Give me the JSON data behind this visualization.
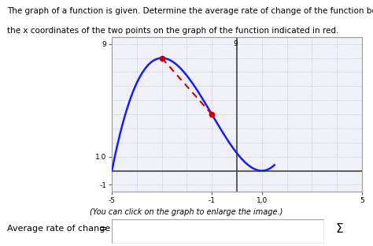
{
  "title_line1": "The graph of a function is given. Determine the average rate of change of the function between",
  "title_line2": "the x coordinates of the two points on the graph of the function indicated in red.",
  "caption": "(You can click on the graph to enlarge the image.)",
  "xlim": [
    -5,
    5
  ],
  "ylim": [
    -1.5,
    9.5
  ],
  "xtick_positions": [
    -5,
    -1,
    1,
    5
  ],
  "xtick_labels": [
    "-5",
    "-1",
    "1,0",
    "5"
  ],
  "ytick_positions": [
    -1,
    1,
    9
  ],
  "ytick_labels": [
    "-1",
    "1.0",
    "9"
  ],
  "grid_color": "#aab0cc",
  "curve_color": "#1a1aff",
  "secant_color": "#cc0000",
  "point_color": "#cc0000",
  "point1_x": -3.0,
  "point2_x": -1.0,
  "bg_color": "#ffffff",
  "plot_bg": "#f0f0f8",
  "border_color": "#888888",
  "fig_width": 4.74,
  "fig_height": 3.12,
  "dpi": 100
}
